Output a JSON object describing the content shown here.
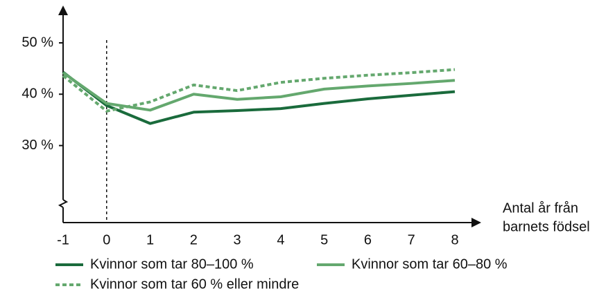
{
  "chart_data": {
    "type": "line",
    "x": [
      -1,
      0,
      1,
      2,
      3,
      4,
      5,
      6,
      7,
      8
    ],
    "xlim": [
      -1,
      8
    ],
    "xticks": [
      -1,
      0,
      1,
      2,
      3,
      4,
      5,
      6,
      7,
      8
    ],
    "xlabel": [
      "Antal år från",
      "barnets födsel"
    ],
    "ylim": [
      15,
      57
    ],
    "yticks": [
      {
        "value": 30,
        "label": "30 %"
      },
      {
        "value": 40,
        "label": "40 %"
      },
      {
        "value": 50,
        "label": "50 %"
      }
    ],
    "vline": 0,
    "series": [
      {
        "name": "Kvinnor som tar 80–100 %",
        "color": "#1a6b3c",
        "style": "solid",
        "values": [
          44.3,
          37.8,
          34.3,
          36.5,
          36.8,
          37.2,
          38.2,
          39.1,
          39.8,
          40.5
        ]
      },
      {
        "name": "Kvinnor som tar 60–80 %",
        "color": "#64a86e",
        "style": "solid",
        "values": [
          44.2,
          38.2,
          36.9,
          40.0,
          39.0,
          39.5,
          41.0,
          41.6,
          42.1,
          42.7
        ]
      },
      {
        "name": "Kvinnor som tar 60 % eller mindre",
        "color": "#64a86e",
        "style": "dashed",
        "values": [
          43.6,
          36.7,
          38.5,
          41.8,
          40.7,
          42.3,
          43.1,
          43.7,
          44.2,
          44.8
        ]
      }
    ]
  }
}
